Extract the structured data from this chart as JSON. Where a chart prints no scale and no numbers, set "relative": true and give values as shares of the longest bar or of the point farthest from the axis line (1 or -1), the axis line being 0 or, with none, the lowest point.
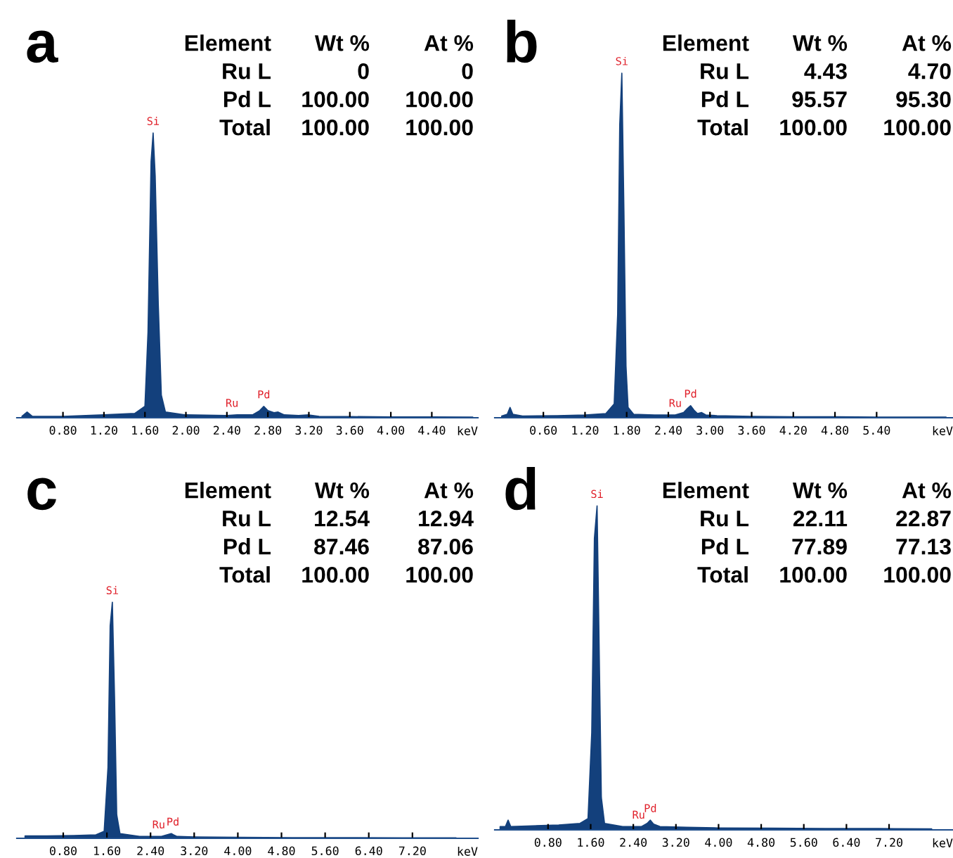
{
  "chart_data": [
    {
      "type": "area",
      "title": "a",
      "xlabel": "keV",
      "relative": true,
      "color": "#13407c",
      "xlim": [
        0.35,
        4.85
      ],
      "xticks": [
        {
          "value": 0.8,
          "label": "0.80"
        },
        {
          "value": 1.2,
          "label": "1.20"
        },
        {
          "value": 1.6,
          "label": "1.60"
        },
        {
          "value": 2.0,
          "label": "2.00"
        },
        {
          "value": 2.4,
          "label": "2.40"
        },
        {
          "value": 2.8,
          "label": "2.80"
        },
        {
          "value": 3.2,
          "label": "3.20"
        },
        {
          "value": 3.6,
          "label": "3.60"
        },
        {
          "value": 4.0,
          "label": "4.00"
        },
        {
          "value": 4.4,
          "label": "4.40"
        }
      ],
      "x": [
        0.4,
        0.45,
        0.5,
        0.8,
        1.2,
        1.5,
        1.6,
        1.63,
        1.66,
        1.68,
        1.7,
        1.73,
        1.76,
        1.8,
        2.0,
        2.4,
        2.5,
        2.65,
        2.72,
        2.76,
        2.8,
        2.86,
        2.9,
        2.96,
        3.1,
        3.2,
        3.3,
        3.6,
        4.0,
        4.4,
        4.8
      ],
      "values": [
        0.005,
        0.02,
        0.005,
        0.005,
        0.01,
        0.015,
        0.04,
        0.3,
        0.9,
        1.0,
        0.85,
        0.4,
        0.08,
        0.02,
        0.01,
        0.008,
        0.01,
        0.01,
        0.025,
        0.04,
        0.025,
        0.018,
        0.02,
        0.01,
        0.008,
        0.01,
        0.005,
        0.004,
        0.003,
        0.003,
        0.002
      ],
      "annotations": [
        "Element",
        "Wt %",
        "At %",
        "Ru L",
        "0",
        "0",
        "Pd L",
        "100.00",
        "100.00",
        "Total",
        "100.00",
        "100.00",
        {
          "text": "Si",
          "x": 1.68,
          "y": 1.0
        },
        {
          "text": "Ru",
          "x": 2.45,
          "y": 0.01
        },
        {
          "text": "Pd",
          "x": 2.76,
          "y": 0.04
        }
      ]
    },
    {
      "type": "area",
      "title": "b",
      "xlabel": "keV",
      "relative": true,
      "color": "#13407c",
      "xlim": [
        -0.1,
        6.5
      ],
      "xticks": [
        {
          "value": 0.6,
          "label": "0.60"
        },
        {
          "value": 1.2,
          "label": "1.20"
        },
        {
          "value": 1.8,
          "label": "1.80"
        },
        {
          "value": 2.4,
          "label": "2.40"
        },
        {
          "value": 3.0,
          "label": "3.00"
        },
        {
          "value": 3.6,
          "label": "3.60"
        },
        {
          "value": 4.2,
          "label": "4.20"
        },
        {
          "value": 4.8,
          "label": "4.80"
        },
        {
          "value": 5.4,
          "label": "5.40"
        }
      ],
      "x": [
        0.0,
        0.08,
        0.12,
        0.16,
        0.3,
        0.8,
        1.2,
        1.5,
        1.62,
        1.67,
        1.7,
        1.73,
        1.76,
        1.79,
        1.82,
        1.9,
        2.2,
        2.5,
        2.62,
        2.68,
        2.72,
        2.77,
        2.82,
        2.88,
        2.94,
        3.1,
        3.6,
        4.2,
        4.8,
        5.4,
        6.0,
        6.4
      ],
      "values": [
        0.005,
        0.01,
        0.03,
        0.01,
        0.005,
        0.006,
        0.008,
        0.012,
        0.04,
        0.3,
        0.85,
        1.0,
        0.6,
        0.15,
        0.03,
        0.01,
        0.008,
        0.008,
        0.015,
        0.028,
        0.035,
        0.022,
        0.012,
        0.015,
        0.008,
        0.006,
        0.004,
        0.003,
        0.003,
        0.002,
        0.002,
        0.002
      ],
      "annotations": [
        "Element",
        "Wt %",
        "At %",
        "Ru L",
        "4.43",
        "4.70",
        "Pd L",
        "95.57",
        "95.30",
        "Total",
        "100.00",
        "100.00",
        {
          "text": "Si",
          "x": 1.73,
          "y": 1.0
        },
        {
          "text": "Ru",
          "x": 2.5,
          "y": 0.008
        },
        {
          "text": "Pd",
          "x": 2.72,
          "y": 0.035
        }
      ]
    },
    {
      "type": "area",
      "title": "c",
      "xlabel": "keV",
      "relative": true,
      "color": "#13407c",
      "xlim": [
        -0.05,
        8.4
      ],
      "xticks": [
        {
          "value": 0.8,
          "label": "0.80"
        },
        {
          "value": 1.6,
          "label": "1.60"
        },
        {
          "value": 2.4,
          "label": "2.40"
        },
        {
          "value": 3.2,
          "label": "3.20"
        },
        {
          "value": 4.0,
          "label": "4.00"
        },
        {
          "value": 4.8,
          "label": "4.80"
        },
        {
          "value": 5.6,
          "label": "5.60"
        },
        {
          "value": 6.4,
          "label": "6.40"
        },
        {
          "value": 7.2,
          "label": "7.20"
        }
      ],
      "x": [
        0.1,
        0.5,
        1.0,
        1.4,
        1.55,
        1.62,
        1.66,
        1.7,
        1.74,
        1.78,
        1.84,
        2.2,
        2.6,
        2.78,
        2.82,
        2.88,
        3.2,
        4.0,
        5.0,
        6.0,
        7.0,
        8.0
      ],
      "values": [
        0.01,
        0.01,
        0.012,
        0.015,
        0.03,
        0.3,
        0.9,
        1.0,
        0.6,
        0.1,
        0.02,
        0.008,
        0.008,
        0.02,
        0.015,
        0.008,
        0.006,
        0.004,
        0.003,
        0.003,
        0.002,
        0.002
      ],
      "annotations": [
        "Element",
        "Wt %",
        "At %",
        "Ru L",
        "12.54",
        "12.94",
        "Pd L",
        "87.46",
        "87.06",
        "Total",
        "100.00",
        "100.00",
        {
          "text": "Si",
          "x": 1.7,
          "y": 1.0
        },
        {
          "text": "Ru",
          "x": 2.55,
          "y": 0.008
        },
        {
          "text": "Pd",
          "x": 2.81,
          "y": 0.02
        }
      ]
    },
    {
      "type": "area",
      "title": "d",
      "xlabel": "keV",
      "relative": true,
      "color": "#13407c",
      "xlim": [
        -0.2,
        8.4
      ],
      "xticks": [
        {
          "value": 0.8,
          "label": "0.80"
        },
        {
          "value": 1.6,
          "label": "1.60"
        },
        {
          "value": 2.4,
          "label": "2.40"
        },
        {
          "value": 3.2,
          "label": "3.20"
        },
        {
          "value": 4.0,
          "label": "4.00"
        },
        {
          "value": 4.8,
          "label": "4.80"
        },
        {
          "value": 5.6,
          "label": "5.60"
        },
        {
          "value": 6.4,
          "label": "6.40"
        },
        {
          "value": 7.2,
          "label": "7.20"
        }
      ],
      "x": [
        -0.1,
        0.0,
        0.05,
        0.1,
        0.4,
        1.0,
        1.4,
        1.55,
        1.62,
        1.67,
        1.72,
        1.76,
        1.8,
        1.86,
        2.2,
        2.55,
        2.66,
        2.72,
        2.78,
        2.9,
        3.4,
        4.0,
        5.0,
        6.0,
        7.0,
        8.0
      ],
      "values": [
        0.01,
        0.01,
        0.03,
        0.01,
        0.012,
        0.015,
        0.02,
        0.035,
        0.3,
        0.9,
        1.0,
        0.55,
        0.1,
        0.02,
        0.01,
        0.01,
        0.02,
        0.03,
        0.018,
        0.01,
        0.008,
        0.006,
        0.005,
        0.004,
        0.004,
        0.003
      ],
      "annotations": [
        "Element",
        "Wt %",
        "At %",
        "Ru L",
        "22.11",
        "22.87",
        "Pd L",
        "77.89",
        "77.13",
        "Total",
        "100.00",
        "100.00",
        {
          "text": "Si",
          "x": 1.72,
          "y": 1.0
        },
        {
          "text": "Ru",
          "x": 2.5,
          "y": 0.01
        },
        {
          "text": "Pd",
          "x": 2.72,
          "y": 0.03
        }
      ]
    }
  ]
}
